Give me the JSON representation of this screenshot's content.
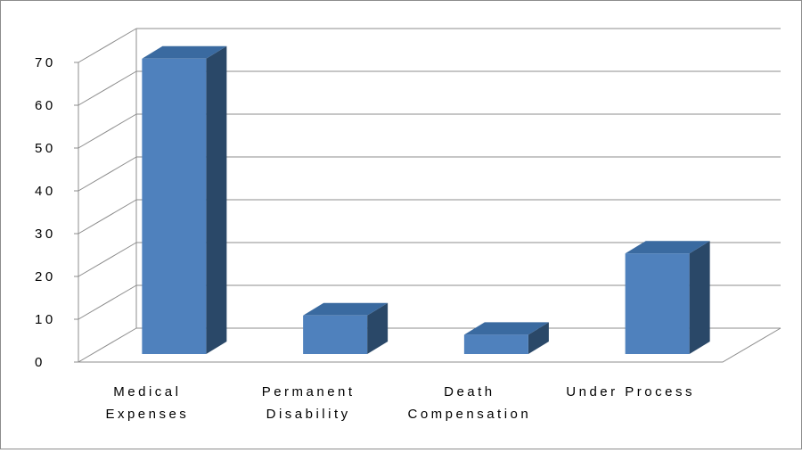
{
  "chart_data": {
    "type": "bar",
    "title": "",
    "xlabel": "",
    "ylabel": "",
    "categories": [
      [
        "Medical",
        "Expenses"
      ],
      [
        "Permanent",
        "Disability"
      ],
      [
        "Death",
        "Compensation"
      ],
      [
        "Under Process"
      ]
    ],
    "values": [
      69,
      9,
      4.5,
      23.5
    ],
    "ylim": [
      0,
      70
    ],
    "yticks": [
      "0",
      "10",
      "20",
      "30",
      "40",
      "50",
      "60",
      "70"
    ],
    "grid": true,
    "legend": "none",
    "three_d": true,
    "colors": {
      "bar_front": "#4f81bd",
      "bar_top": "#3a6aa0",
      "bar_side": "#2a4868",
      "grid": "#8c8c8c",
      "axis": "#8c8c8c"
    }
  }
}
